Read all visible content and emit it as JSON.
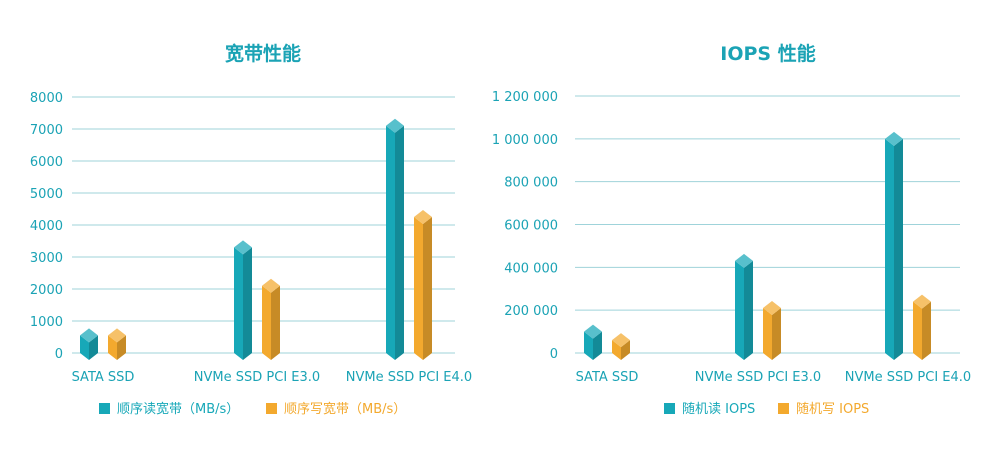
{
  "colors": {
    "teal": "#17a8b8",
    "orange": "#f3a92e",
    "title": "#1ba3b5",
    "axis_text": "#1ba3b5",
    "grid": "#9fd3da"
  },
  "chart_data": [
    {
      "type": "bar",
      "title": "宽带性能",
      "categories": [
        "SATA SSD",
        "NVMe SSD PCI E3.0",
        "NVMe SSD PCI E4.0"
      ],
      "ylim": [
        0,
        8000
      ],
      "yticks": [
        0,
        1000,
        2000,
        3000,
        4000,
        5000,
        6000,
        7000,
        8000
      ],
      "ytick_labels": [
        "0",
        "1000",
        "2000",
        "3000",
        "4000",
        "5000",
        "6000",
        "7000",
        "8000"
      ],
      "grid": true,
      "legend_position": "bottom",
      "series": [
        {
          "name": "顺序读宽带（MB/s）",
          "color": "#17a8b8",
          "values": [
            550,
            3300,
            7100
          ]
        },
        {
          "name": "顺序写宽带（MB/s）",
          "color": "#f3a92e",
          "values": [
            550,
            2100,
            4250
          ]
        }
      ]
    },
    {
      "type": "bar",
      "title": "IOPS 性能",
      "categories": [
        "SATA SSD",
        "NVMe SSD PCI E3.0",
        "NVMe SSD PCI E4.0"
      ],
      "ylim": [
        0,
        1200000
      ],
      "yticks": [
        0,
        200000,
        400000,
        600000,
        800000,
        1000000,
        1200000
      ],
      "ytick_labels": [
        "0",
        "200 000",
        "400 000",
        "600 000",
        "800 000",
        "1 000 000",
        "1 200 000"
      ],
      "grid": true,
      "legend_position": "bottom",
      "series": [
        {
          "name": "随机读 IOPS",
          "color": "#17a8b8",
          "values": [
            100000,
            430000,
            1000000
          ]
        },
        {
          "name": "随机写 IOPS",
          "color": "#f3a92e",
          "values": [
            60000,
            210000,
            240000
          ]
        }
      ]
    }
  ]
}
